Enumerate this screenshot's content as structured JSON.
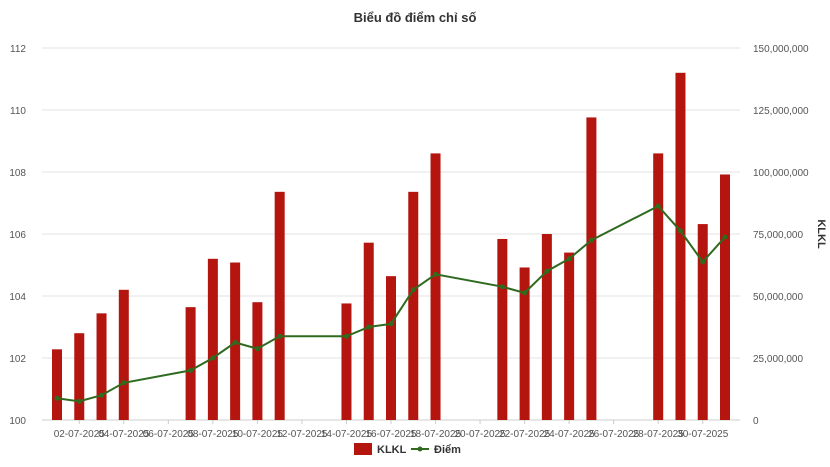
{
  "chart_data": {
    "type": "bar",
    "title": "Biểu đồ điểm chỉ số",
    "ylabel_right": "KLKL",
    "ylabel_left": "",
    "grid": true,
    "legend_position": "bottom",
    "x_tick_labels": [
      "02-07-2025",
      "04-07-2025",
      "06-07-2025",
      "08-07-2025",
      "10-07-2025",
      "12-07-2025",
      "14-07-2025",
      "16-07-2025",
      "18-07-2025",
      "20-07-2025",
      "22-07-2025",
      "24-07-2025",
      "26-07-2025",
      "28-07-2025",
      "30-07-2025"
    ],
    "y_left": {
      "min": 100,
      "max": 112,
      "ticks": [
        "100",
        "102",
        "104",
        "106",
        "108",
        "110",
        "112"
      ]
    },
    "y_right": {
      "min": 0,
      "max": 150000000,
      "ticks": [
        "0",
        "25,000,000",
        "50,000,000",
        "75,000,000",
        "100,000,000",
        "125,000,000",
        "150,000,000"
      ]
    },
    "series": [
      {
        "name": "KLKL",
        "type": "bar",
        "axis": "right",
        "color": "#b5150f",
        "points": [
          {
            "x": "01-07-2025",
            "y": 28500000
          },
          {
            "x": "02-07-2025",
            "y": 35000000
          },
          {
            "x": "03-07-2025",
            "y": 43000000
          },
          {
            "x": "04-07-2025",
            "y": 52500000
          },
          {
            "x": "07-07-2025",
            "y": 45500000
          },
          {
            "x": "08-07-2025",
            "y": 65000000
          },
          {
            "x": "09-07-2025",
            "y": 63500000
          },
          {
            "x": "10-07-2025",
            "y": 47500000
          },
          {
            "x": "11-07-2025",
            "y": 92000000
          },
          {
            "x": "14-07-2025",
            "y": 47000000
          },
          {
            "x": "15-07-2025",
            "y": 71500000
          },
          {
            "x": "16-07-2025",
            "y": 58000000
          },
          {
            "x": "17-07-2025",
            "y": 92000000
          },
          {
            "x": "18-07-2025",
            "y": 107500000
          },
          {
            "x": "21-07-2025",
            "y": 73000000
          },
          {
            "x": "22-07-2025",
            "y": 61500000
          },
          {
            "x": "23-07-2025",
            "y": 75000000
          },
          {
            "x": "24-07-2025",
            "y": 67500000
          },
          {
            "x": "25-07-2025",
            "y": 122000000
          },
          {
            "x": "28-07-2025",
            "y": 107500000
          },
          {
            "x": "29-07-2025",
            "y": 140000000
          },
          {
            "x": "30-07-2025",
            "y": 79000000
          },
          {
            "x": "31-07-2025",
            "y": 99000000
          }
        ]
      },
      {
        "name": "Điểm",
        "type": "line",
        "axis": "left",
        "color": "#2e6b1f",
        "points": [
          {
            "x": "01-07-2025",
            "y": 100.7
          },
          {
            "x": "02-07-2025",
            "y": 100.6
          },
          {
            "x": "03-07-2025",
            "y": 100.8
          },
          {
            "x": "04-07-2025",
            "y": 101.2
          },
          {
            "x": "07-07-2025",
            "y": 101.6
          },
          {
            "x": "08-07-2025",
            "y": 102.0
          },
          {
            "x": "09-07-2025",
            "y": 102.5
          },
          {
            "x": "10-07-2025",
            "y": 102.3
          },
          {
            "x": "11-07-2025",
            "y": 102.7
          },
          {
            "x": "14-07-2025",
            "y": 102.7
          },
          {
            "x": "15-07-2025",
            "y": 103.0
          },
          {
            "x": "16-07-2025",
            "y": 103.1
          },
          {
            "x": "17-07-2025",
            "y": 104.2
          },
          {
            "x": "18-07-2025",
            "y": 104.7
          },
          {
            "x": "21-07-2025",
            "y": 104.3
          },
          {
            "x": "22-07-2025",
            "y": 104.1
          },
          {
            "x": "23-07-2025",
            "y": 104.8
          },
          {
            "x": "24-07-2025",
            "y": 105.2
          },
          {
            "x": "25-07-2025",
            "y": 105.8
          },
          {
            "x": "28-07-2025",
            "y": 106.9
          },
          {
            "x": "29-07-2025",
            "y": 106.1
          },
          {
            "x": "30-07-2025",
            "y": 105.1
          },
          {
            "x": "31-07-2025",
            "y": 105.9
          }
        ]
      }
    ]
  }
}
